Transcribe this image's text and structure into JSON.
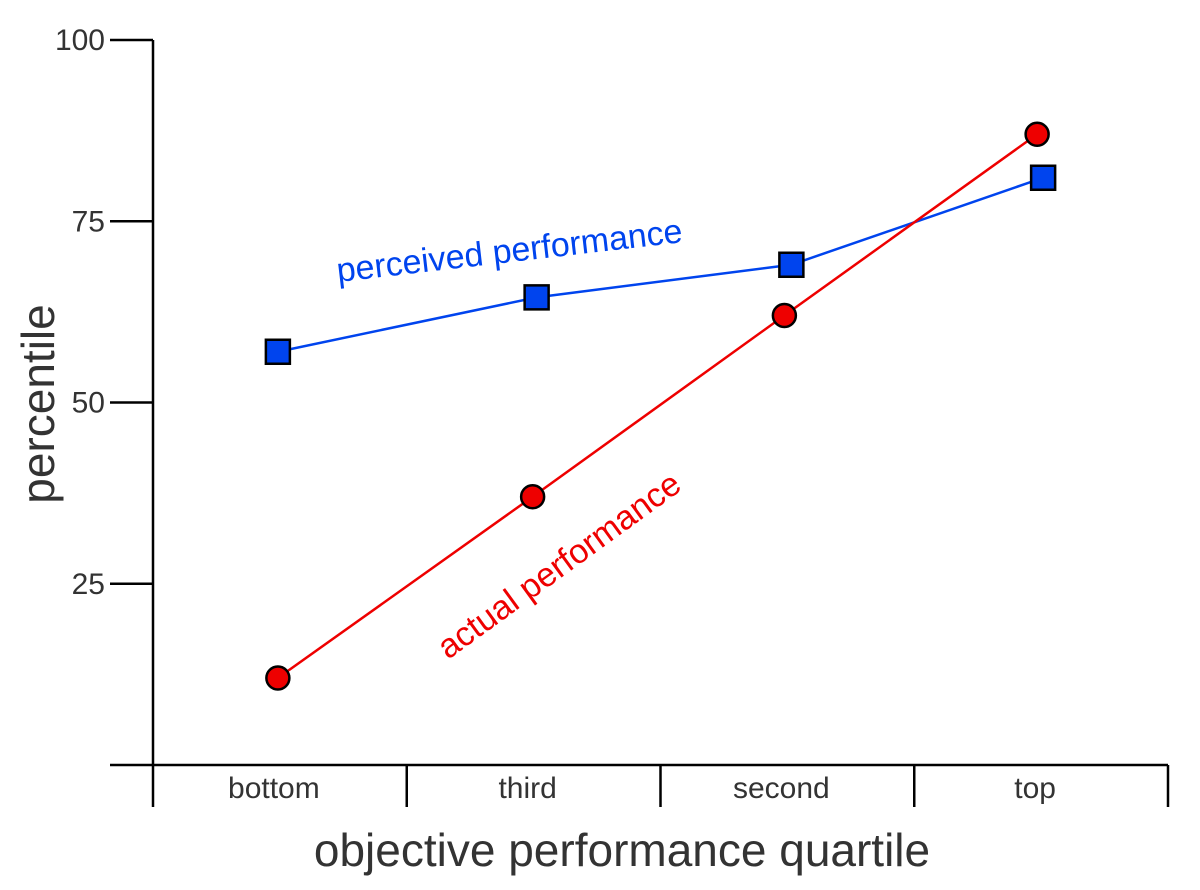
{
  "chart_data": {
    "type": "line",
    "xlabel": "objective performance quartile",
    "ylabel": "percentile",
    "categories": [
      "bottom",
      "third",
      "second",
      "top"
    ],
    "ylim": [
      0,
      100
    ],
    "yticks": [
      25,
      50,
      75,
      100
    ],
    "grid": false,
    "legend": "none",
    "series": [
      {
        "name": "perceived performance",
        "marker": "square",
        "color": "#0044ee",
        "values": [
          57,
          64.5,
          69,
          81
        ]
      },
      {
        "name": "actual performance",
        "marker": "circle",
        "color": "#ee0000",
        "values": [
          12,
          37,
          62,
          87
        ]
      }
    ]
  }
}
